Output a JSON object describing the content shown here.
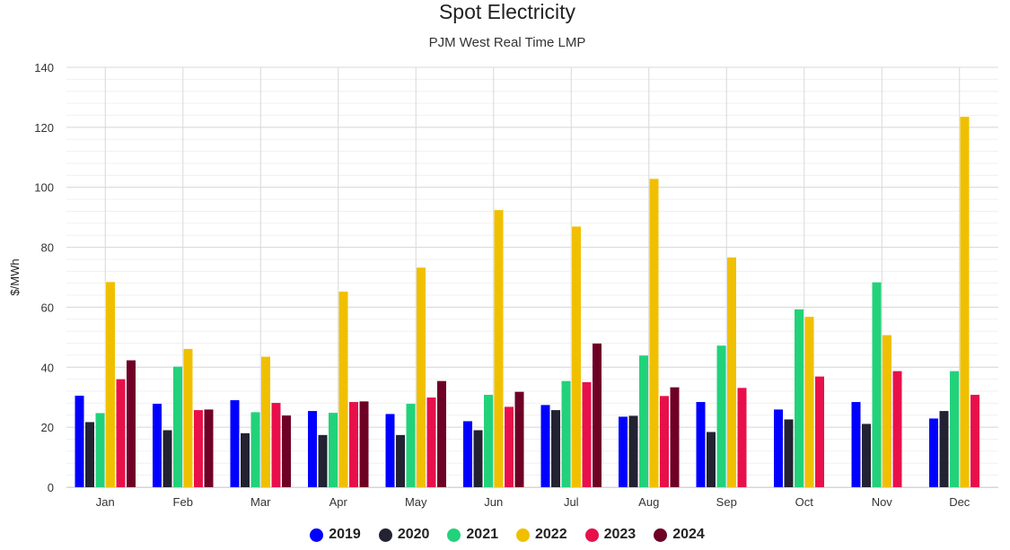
{
  "chart_data": {
    "type": "bar",
    "title": "Spot Electricity",
    "subtitle": "PJM West Real Time LMP",
    "xlabel": "",
    "ylabel": "$/MWh",
    "ylim": [
      0,
      140
    ],
    "yticks": [
      0,
      20,
      40,
      60,
      80,
      100,
      120,
      140
    ],
    "grid": true,
    "legend_position": "bottom",
    "categories": [
      "Jan",
      "Feb",
      "Mar",
      "Apr",
      "May",
      "Jun",
      "Jul",
      "Aug",
      "Sep",
      "Oct",
      "Nov",
      "Dec"
    ],
    "series": [
      {
        "name": "2019",
        "color": "#0000ff",
        "values": [
          30.5,
          27.8,
          29.0,
          25.4,
          24.4,
          22.0,
          27.4,
          23.5,
          28.4,
          25.9,
          28.4,
          22.9
        ]
      },
      {
        "name": "2020",
        "color": "#222233",
        "values": [
          21.7,
          19.0,
          18.0,
          17.4,
          17.4,
          19.0,
          25.7,
          23.8,
          18.4,
          22.6,
          21.1,
          25.4
        ]
      },
      {
        "name": "2021",
        "color": "#22d27a",
        "values": [
          24.7,
          40.2,
          25.0,
          24.8,
          27.8,
          30.8,
          35.4,
          43.9,
          47.2,
          59.3,
          68.3,
          38.7
        ]
      },
      {
        "name": "2022",
        "color": "#f0c000",
        "values": [
          68.4,
          46.1,
          43.5,
          65.2,
          73.2,
          92.4,
          86.9,
          102.8,
          76.6,
          56.8,
          50.7,
          123.5
        ]
      },
      {
        "name": "2023",
        "color": "#e8104a",
        "values": [
          36.0,
          25.7,
          28.1,
          28.4,
          29.9,
          26.8,
          35.0,
          30.4,
          33.1,
          36.9,
          38.7,
          30.8
        ]
      },
      {
        "name": "2024",
        "color": "#6e0025",
        "values": [
          42.3,
          25.9,
          23.9,
          28.6,
          35.4,
          31.8,
          47.9,
          33.3,
          null,
          null,
          null,
          null
        ]
      }
    ]
  }
}
